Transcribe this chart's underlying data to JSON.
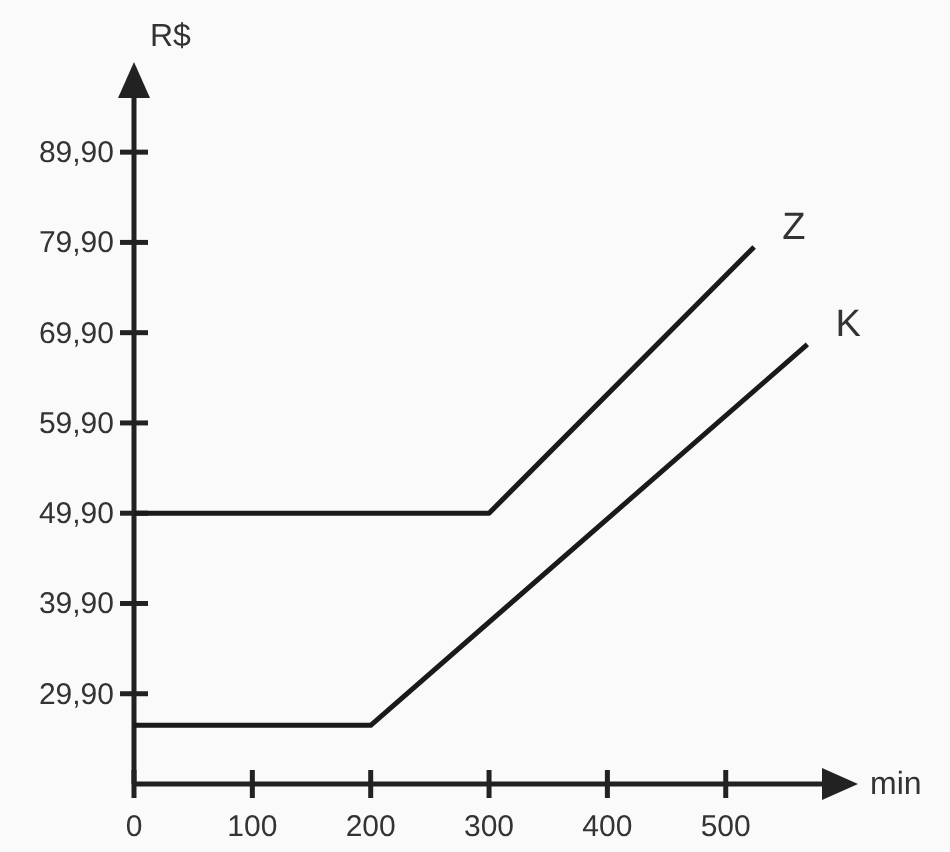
{
  "chart_data": {
    "type": "line",
    "xlabel": "min",
    "ylabel": "R$",
    "xlim": [
      0,
      605
    ],
    "ylim": [
      19.9,
      99
    ],
    "xticks": [
      0,
      100,
      200,
      300,
      400,
      500
    ],
    "yticks": [
      {
        "value": 29.9,
        "label": "29,90"
      },
      {
        "value": 39.9,
        "label": "39,90"
      },
      {
        "value": 49.9,
        "label": "49,90"
      },
      {
        "value": 59.9,
        "label": "59,90"
      },
      {
        "value": 69.9,
        "label": "69,90"
      },
      {
        "value": 79.9,
        "label": "79,90"
      },
      {
        "value": 89.9,
        "label": "89,90"
      }
    ],
    "series": [
      {
        "name": "Z",
        "color": "#1a1a1a",
        "x": [
          0,
          300,
          524
        ],
        "values": [
          49.9,
          49.9,
          79.4
        ]
      },
      {
        "name": "K",
        "color": "#1a1a1a",
        "x": [
          0,
          200,
          569
        ],
        "values": [
          26.4,
          26.4,
          68.6
        ]
      }
    ],
    "grid": false,
    "marker": "none",
    "line_style": "solid"
  }
}
